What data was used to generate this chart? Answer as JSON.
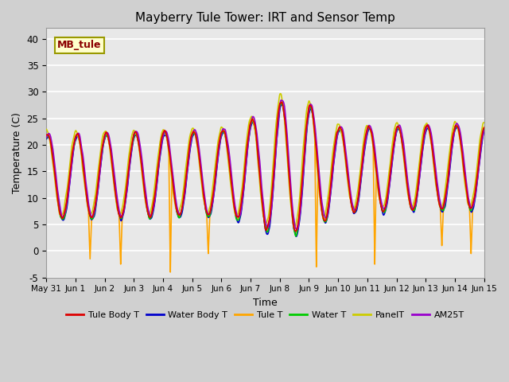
{
  "title": "Mayberry Tule Tower: IRT and Sensor Temp",
  "xlabel": "Time",
  "ylabel": "Temperature (C)",
  "ylim": [
    -5,
    42
  ],
  "yticks": [
    -5,
    0,
    5,
    10,
    15,
    20,
    25,
    30,
    35,
    40
  ],
  "label_box_text": "MB_tule",
  "fig_bg_color": "#d0d0d0",
  "plot_bg_color": "#e8e8e8",
  "grid_color": "white",
  "line_colors": {
    "Tule Body T": "#dd0000",
    "Water Body T": "#0000cc",
    "Tule T": "#ffa500",
    "Water T": "#00cc00",
    "PanelT": "#cccc00",
    "AM25T": "#9900cc"
  },
  "xtick_labels": [
    "May 31",
    "Jun 1",
    "Jun 2",
    "Jun 3",
    "Jun 4",
    "Jun 5",
    "Jun 6",
    "Jun 7",
    "Jun 8",
    "Jun 9",
    "Jun 10",
    "Jun 11",
    "Jun 12",
    "Jun 13",
    "Jun 14",
    "Jun 15"
  ],
  "num_days": 15,
  "points_per_day": 144
}
